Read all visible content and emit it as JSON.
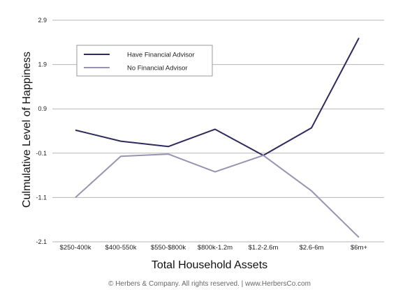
{
  "chart_data": {
    "type": "line",
    "title": "",
    "xlabel": "Total Household Assets",
    "ylabel": "Culmulative Level of Happiness",
    "categories": [
      "$250-400k",
      "$400-550k",
      "$550-$800k",
      "$800k-1.2m",
      "$1.2-2.6m",
      "$2.6-6m",
      "$6m+"
    ],
    "ylim": [
      -2.1,
      2.9
    ],
    "yticks": [
      2.9,
      1.9,
      0.9,
      -0.1,
      -1.1,
      -2.1
    ],
    "series": [
      {
        "name": "Have Financial Advisor",
        "color": "#2e2a5e",
        "values": [
          0.42,
          0.17,
          0.05,
          0.44,
          -0.15,
          0.47,
          2.5
        ]
      },
      {
        "name": "No Financial Advisor",
        "color": "#9893b2",
        "values": [
          -1.1,
          -0.17,
          -0.12,
          -0.52,
          -0.15,
          -0.95,
          -2.0
        ]
      }
    ],
    "grid": true,
    "legend_position": "top-left"
  },
  "footer": {
    "text": "© Herbers & Company. All rights reserved.  |  www.HerbersCo.com"
  }
}
